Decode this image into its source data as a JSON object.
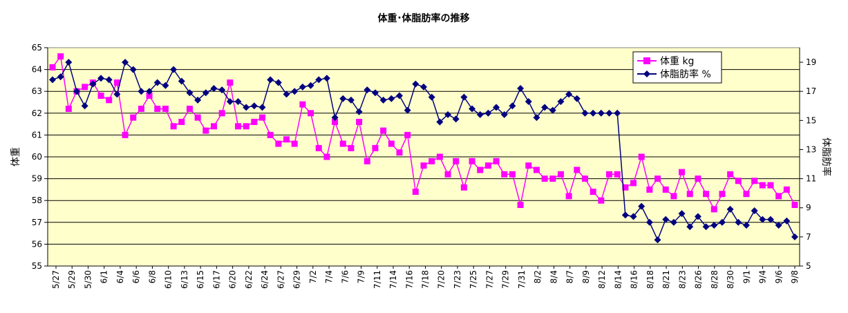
{
  "chart_data": {
    "type": "line",
    "title": "体重･体脂肪率の推移",
    "ylabel_left": "体重",
    "ylabel_right": "体脂肪率",
    "ylim_left": [
      55,
      65
    ],
    "ylim_right": [
      5,
      20
    ],
    "yticks_left": [
      "55",
      "56",
      "57",
      "58",
      "59",
      "60",
      "61",
      "62",
      "63",
      "64",
      "65"
    ],
    "yticks_right": [
      "5",
      "7",
      "9",
      "11",
      "13",
      "15",
      "17",
      "19"
    ],
    "grid": "horizontal",
    "legend_position": "top-right",
    "x_tick_labels": [
      "5/27",
      "5/29",
      "5/30",
      "6/1",
      "6/4",
      "6/6",
      "6/8",
      "6/10",
      "6/13",
      "6/15",
      "6/17",
      "6/20",
      "6/22",
      "6/24",
      "6/27",
      "6/29",
      "7/2",
      "7/4",
      "7/6",
      "7/9",
      "7/11",
      "7/14",
      "7/16",
      "7/18",
      "7/20",
      "7/23",
      "7/25",
      "7/27",
      "7/29",
      "7/31",
      "8/2",
      "8/4",
      "8/7",
      "8/9",
      "8/12",
      "8/14",
      "8/16",
      "8/18",
      "8/21",
      "8/23",
      "8/26",
      "8/28",
      "8/30",
      "9/1",
      "9/4",
      "9/6",
      "9/8"
    ],
    "colors": {
      "plot_bg": "#FFFFCC",
      "weight": "#FF00FF",
      "bodyfat": "#000080"
    },
    "series": [
      {
        "name": "体重 kg",
        "axis": "left",
        "values": [
          64.1,
          64.6,
          62.2,
          63.0,
          63.2,
          63.4,
          62.8,
          62.6,
          63.4,
          61.0,
          61.8,
          62.2,
          62.8,
          62.2,
          62.2,
          61.4,
          61.6,
          62.2,
          61.8,
          61.2,
          61.4,
          62.0,
          63.4,
          61.4,
          61.4,
          61.6,
          61.8,
          61.0,
          60.6,
          60.8,
          60.6,
          62.4,
          62.0,
          60.4,
          60.0,
          61.6,
          60.6,
          60.4,
          61.6,
          59.8,
          60.4,
          61.2,
          60.6,
          60.2,
          61.0,
          58.4,
          59.6,
          59.8,
          60.0,
          59.2,
          59.8,
          58.6,
          59.8,
          59.4,
          59.6,
          59.8,
          59.2,
          59.2,
          57.8,
          59.6,
          59.4,
          59.0,
          59.0,
          59.2,
          58.2,
          59.4,
          59.0,
          58.4,
          58.0,
          59.2,
          59.2,
          58.6,
          58.8,
          60.0,
          58.5,
          59.0,
          58.5,
          58.2,
          59.3,
          58.3,
          59.0,
          58.3,
          57.6,
          58.3,
          59.2,
          58.9,
          58.3,
          58.9,
          58.7,
          58.7,
          58.2,
          58.5,
          57.8
        ]
      },
      {
        "name": "体脂肪率 %",
        "axis": "right",
        "values": [
          17.8,
          18.0,
          19.0,
          17.0,
          16.0,
          17.5,
          17.9,
          17.8,
          16.8,
          19.0,
          18.5,
          17.0,
          17.0,
          17.6,
          17.4,
          18.5,
          17.7,
          16.9,
          16.4,
          16.9,
          17.2,
          17.1,
          16.3,
          16.3,
          15.9,
          16.0,
          15.9,
          17.8,
          17.6,
          16.8,
          17.0,
          17.3,
          17.4,
          17.8,
          17.9,
          15.2,
          16.5,
          16.4,
          15.6,
          17.1,
          16.9,
          16.4,
          16.5,
          16.7,
          15.7,
          17.5,
          17.3,
          16.6,
          14.9,
          15.4,
          15.1,
          16.6,
          15.8,
          15.4,
          15.5,
          15.9,
          15.4,
          16.0,
          17.2,
          16.3,
          15.2,
          15.9,
          15.7,
          16.3,
          16.8,
          16.5,
          15.5,
          15.5,
          15.5,
          15.5,
          15.5,
          8.5,
          8.4,
          9.1,
          8.0,
          6.8,
          8.2,
          8.0,
          8.6,
          7.7,
          8.4,
          7.7,
          7.8,
          8.0,
          8.9,
          8.0,
          7.8,
          8.8,
          8.2,
          8.2,
          7.8,
          8.1,
          7.0
        ]
      }
    ]
  }
}
